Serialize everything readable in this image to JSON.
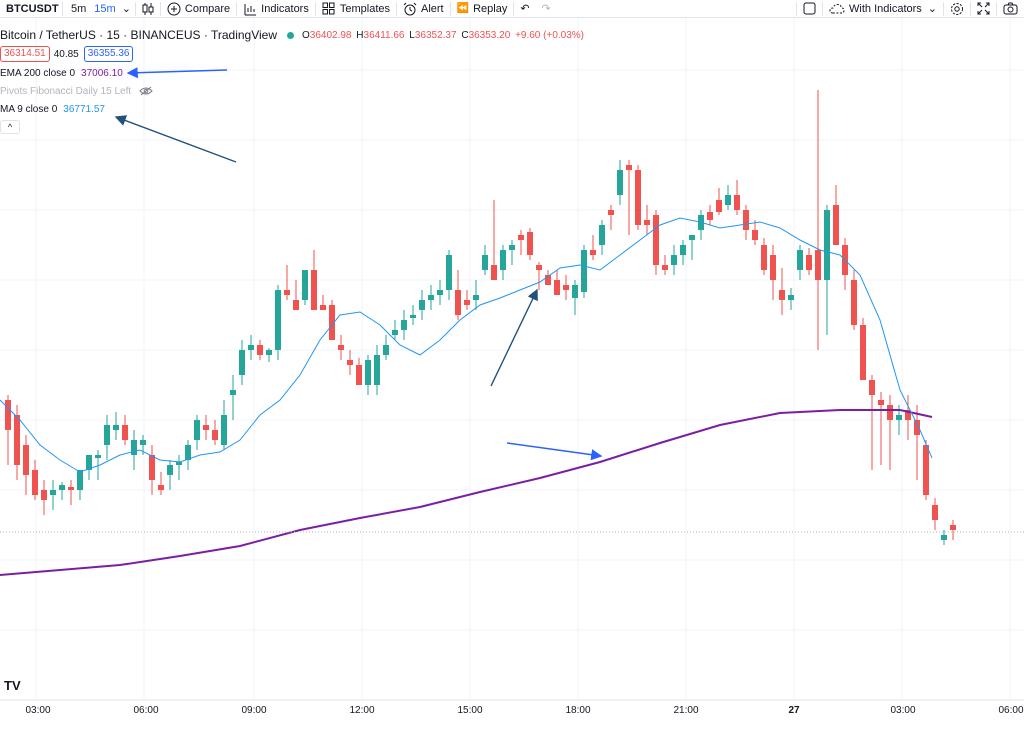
{
  "toolbar": {
    "symbol": "BTCUSDT",
    "intervals": [
      "5m",
      "15m"
    ],
    "active_interval": "15m",
    "compare_label": "Compare",
    "indicators_label": "Indicators",
    "templates_label": "Templates",
    "alert_label": "Alert",
    "replay_label": "Replay",
    "layout_label": "With Indicators"
  },
  "header": {
    "title": "Bitcoin / TetherUS · 15 · BINANCEUS · TradingView",
    "open_prefix": "O",
    "open": "36402.98",
    "high_prefix": "H",
    "high": "36411.66",
    "low_prefix": "L",
    "low": "36352.37",
    "close_prefix": "C",
    "close": "36353.20",
    "change": "+9.60 (+0.03%)",
    "bid": "36314.51",
    "spread": "40.85",
    "ask": "36355.36"
  },
  "indicators": [
    {
      "label": "EMA 200 close 0",
      "value": "37006.10",
      "color": "#7b1fa2"
    },
    {
      "label": "Pivots Fibonacci Daily 15 Left",
      "value": "",
      "color": "#b2b5be"
    },
    {
      "label": "MA 9 close 0",
      "value": "36771.57",
      "color": "#2196f3"
    }
  ],
  "xaxis": {
    "labels": [
      "03:00",
      "06:00",
      "09:00",
      "12:00",
      "15:00",
      "18:00",
      "21:00",
      "27",
      "03:00",
      "06:00"
    ]
  },
  "colors": {
    "up": "#26a69a",
    "down": "#ef5350",
    "ema": "#7b1fa2",
    "ma": "#2196f3",
    "arrow": "#2962ff"
  },
  "watermark": "TV"
}
